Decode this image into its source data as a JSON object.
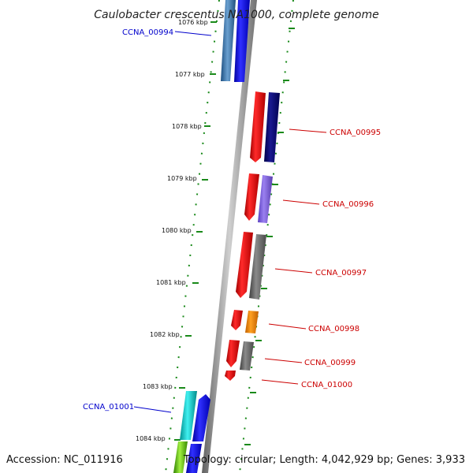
{
  "title": "Caulobacter crescentus NA1000, complete genome",
  "accession": "Accession: NC_011916",
  "topology": "Topology: circular; Length: 4,042,929 bp; Genes: 3,933",
  "ticks": [
    "1076 kbp",
    "1077 kbp",
    "1078 kbp",
    "1079 kbp",
    "1080 kbp",
    "1081 kbp",
    "1082 kbp",
    "1083 kbp",
    "1084 kbp"
  ],
  "genes": [
    {
      "name": "CCNA_00994",
      "strand": "-",
      "color": "#0000cc"
    },
    {
      "name": "CCNA_00995",
      "strand": "+",
      "color": "#cc0000"
    },
    {
      "name": "CCNA_00996",
      "strand": "+",
      "color": "#cc0000"
    },
    {
      "name": "CCNA_00997",
      "strand": "+",
      "color": "#cc0000"
    },
    {
      "name": "CCNA_00998",
      "strand": "+",
      "color": "#cc0000"
    },
    {
      "name": "CCNA_00999",
      "strand": "+",
      "color": "#cc0000"
    },
    {
      "name": "CCNA_01000",
      "strand": "+",
      "color": "#cc0000"
    },
    {
      "name": "CCNA_01001",
      "strand": "-",
      "color": "#0000cc"
    }
  ]
}
